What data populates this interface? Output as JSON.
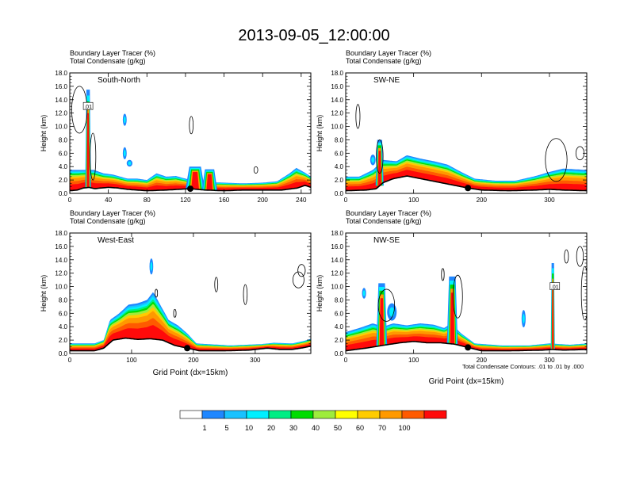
{
  "title": "2013-09-05_12:00:00",
  "panel_header": {
    "line1": "Boundary Layer Tracer   (%)",
    "line2": "Total Condensate   (g/kg)"
  },
  "y_axis_label": "Height (km)",
  "x_axis_label": "Grid Point (dx=15km)",
  "contour_note": "Total Condensate Contours: .01 to .01 by .000",
  "colorbar": {
    "colors": [
      "#ffffff",
      "#1f87ff",
      "#19c2ff",
      "#00f0ff",
      "#00ee84",
      "#00dd00",
      "#9eec3c",
      "#ffff00",
      "#ffcc00",
      "#ff9900",
      "#ff5a00",
      "#ff0a0a"
    ],
    "labels": [
      "1",
      "5",
      "10",
      "20",
      "30",
      "40",
      "50",
      "60",
      "70",
      "100"
    ]
  },
  "chart_data": [
    {
      "type": "heatmap",
      "name": "South-North",
      "title": "South-North",
      "xlim": [
        0,
        250
      ],
      "xticks": [
        0,
        40,
        80,
        120,
        160,
        200,
        240
      ],
      "ylim": [
        0,
        18
      ],
      "yticks": [
        "0.0",
        "2.0",
        "4.0",
        "6.0",
        "8.0",
        "10.0",
        "12.0",
        "14.0",
        "16.0",
        "18.0"
      ],
      "contour_label": ".01",
      "contour_label_pos": [
        19,
        13
      ],
      "marker_x": 125,
      "terrain": [
        [
          0,
          0.4
        ],
        [
          8,
          0.5
        ],
        [
          14,
          0.8
        ],
        [
          20,
          0.9
        ],
        [
          26,
          0.7
        ],
        [
          32,
          0.8
        ],
        [
          40,
          0.9
        ],
        [
          50,
          0.8
        ],
        [
          60,
          0.6
        ],
        [
          80,
          0.4
        ],
        [
          100,
          0.5
        ],
        [
          125,
          0.7
        ],
        [
          140,
          0.5
        ],
        [
          160,
          0.4
        ],
        [
          180,
          0.5
        ],
        [
          200,
          0.5
        ],
        [
          220,
          0.5
        ],
        [
          236,
          0.8
        ],
        [
          244,
          1.2
        ],
        [
          250,
          0.9
        ]
      ],
      "layer": [
        [
          0,
          3.5
        ],
        [
          15,
          3.5
        ],
        [
          25,
          3.5
        ],
        [
          35,
          3.0
        ],
        [
          45,
          2.8
        ],
        [
          60,
          2.2
        ],
        [
          70,
          2.2
        ],
        [
          80,
          2.0
        ],
        [
          90,
          3.0
        ],
        [
          100,
          2.5
        ],
        [
          110,
          2.6
        ],
        [
          125,
          2.0
        ],
        [
          140,
          1.7
        ],
        [
          160,
          1.6
        ],
        [
          180,
          1.5
        ],
        [
          200,
          1.6
        ],
        [
          215,
          1.8
        ],
        [
          228,
          3.0
        ],
        [
          235,
          3.8
        ],
        [
          245,
          3.0
        ],
        [
          250,
          2.5
        ]
      ],
      "plumes": [
        {
          "x": 19,
          "w": 3,
          "h": 15.5
        },
        {
          "x": 130,
          "w": 10,
          "h": 4.0
        },
        {
          "x": 145,
          "w": 8,
          "h": 3.6
        }
      ],
      "blobs": [
        {
          "x": 57,
          "y": 11.0,
          "rx": 2,
          "ry": 0.9
        },
        {
          "x": 57,
          "y": 6.0,
          "rx": 2,
          "ry": 0.9
        },
        {
          "x": 62,
          "y": 4.5,
          "rx": 3,
          "ry": 0.5
        }
      ],
      "contours": [
        {
          "x": 10,
          "y": 12.5,
          "rx": 8,
          "ry": 3.5
        },
        {
          "x": 126,
          "y": 10.2,
          "rx": 2,
          "ry": 1.3
        },
        {
          "x": 193,
          "y": 3.5,
          "rx": 2,
          "ry": 0.5
        },
        {
          "x": 24,
          "y": 5.5,
          "rx": 3,
          "ry": 3.5
        }
      ]
    },
    {
      "type": "heatmap",
      "name": "SW-NE",
      "title": "SW-NE",
      "xlim": [
        0,
        355
      ],
      "xticks": [
        0,
        100,
        200,
        300
      ],
      "ylim": [
        0,
        18
      ],
      "yticks": [
        "0.0",
        "2.0",
        "4.0",
        "6.0",
        "8.0",
        "10.0",
        "12.0",
        "14.0",
        "16.0",
        "18.0"
      ],
      "contour_label": "",
      "contour_label_pos": [
        0,
        0
      ],
      "marker_x": 180,
      "terrain": [
        [
          0,
          0.4
        ],
        [
          30,
          0.5
        ],
        [
          45,
          0.7
        ],
        [
          55,
          1.6
        ],
        [
          70,
          2.2
        ],
        [
          90,
          2.6
        ],
        [
          110,
          2.2
        ],
        [
          130,
          1.8
        ],
        [
          150,
          1.4
        ],
        [
          170,
          1.0
        ],
        [
          180,
          0.8
        ],
        [
          200,
          0.5
        ],
        [
          240,
          0.4
        ],
        [
          280,
          0.5
        ],
        [
          300,
          0.6
        ],
        [
          320,
          0.5
        ],
        [
          355,
          0.4
        ]
      ],
      "layer": [
        [
          0,
          2.5
        ],
        [
          20,
          2.5
        ],
        [
          40,
          3.5
        ],
        [
          55,
          5.0
        ],
        [
          75,
          4.8
        ],
        [
          90,
          5.7
        ],
        [
          110,
          5.2
        ],
        [
          130,
          4.8
        ],
        [
          150,
          4.3
        ],
        [
          170,
          3.2
        ],
        [
          190,
          2.2
        ],
        [
          220,
          1.9
        ],
        [
          250,
          1.9
        ],
        [
          280,
          2.6
        ],
        [
          300,
          3.2
        ],
        [
          320,
          3.7
        ],
        [
          355,
          3.5
        ]
      ],
      "plumes": [
        {
          "x": 50,
          "w": 6,
          "h": 8.0
        }
      ],
      "blobs": [
        {
          "x": 40,
          "y": 5.0,
          "rx": 4,
          "ry": 0.8
        }
      ],
      "contours": [
        {
          "x": 18,
          "y": 11.5,
          "rx": 3,
          "ry": 1.8
        },
        {
          "x": 310,
          "y": 5.0,
          "rx": 16,
          "ry": 3.2
        },
        {
          "x": 345,
          "y": 6.0,
          "rx": 6,
          "ry": 1.0
        },
        {
          "x": 50,
          "y": 5.5,
          "rx": 5,
          "ry": 2.5
        }
      ]
    },
    {
      "type": "heatmap",
      "name": "West-East",
      "title": "West-East",
      "xlim": [
        0,
        390
      ],
      "xticks": [
        0,
        100,
        200,
        300
      ],
      "ylim": [
        0,
        18
      ],
      "yticks": [
        "0.0",
        "2.0",
        "4.0",
        "6.0",
        "8.0",
        "10.0",
        "12.0",
        "14.0",
        "16.0",
        "18.0"
      ],
      "contour_label": "",
      "contour_label_pos": [
        0,
        0
      ],
      "marker_x": 190,
      "terrain": [
        [
          0,
          0.4
        ],
        [
          40,
          0.4
        ],
        [
          55,
          0.8
        ],
        [
          70,
          2.0
        ],
        [
          90,
          2.3
        ],
        [
          110,
          2.1
        ],
        [
          130,
          2.2
        ],
        [
          150,
          2.0
        ],
        [
          170,
          1.2
        ],
        [
          190,
          0.8
        ],
        [
          210,
          0.4
        ],
        [
          250,
          0.4
        ],
        [
          290,
          0.5
        ],
        [
          320,
          0.8
        ],
        [
          340,
          0.6
        ],
        [
          360,
          0.6
        ],
        [
          380,
          0.9
        ],
        [
          390,
          1.1
        ]
      ],
      "layer": [
        [
          0,
          1.5
        ],
        [
          40,
          1.5
        ],
        [
          55,
          2.0
        ],
        [
          65,
          5.0
        ],
        [
          80,
          6.0
        ],
        [
          95,
          7.3
        ],
        [
          110,
          7.5
        ],
        [
          125,
          8.0
        ],
        [
          135,
          9.2
        ],
        [
          145,
          7.5
        ],
        [
          160,
          5.0
        ],
        [
          175,
          4.2
        ],
        [
          190,
          3.0
        ],
        [
          205,
          1.5
        ],
        [
          260,
          1.2
        ],
        [
          310,
          1.4
        ],
        [
          330,
          1.6
        ],
        [
          360,
          1.5
        ],
        [
          380,
          1.9
        ],
        [
          390,
          2.2
        ]
      ],
      "plumes": [],
      "blobs": [
        {
          "x": 132,
          "y": 13.0,
          "rx": 3,
          "ry": 1.2
        }
      ],
      "contours": [
        {
          "x": 237,
          "y": 10.3,
          "rx": 2.5,
          "ry": 1.1
        },
        {
          "x": 284,
          "y": 8.8,
          "rx": 3,
          "ry": 1.5
        },
        {
          "x": 370,
          "y": 11.0,
          "rx": 9,
          "ry": 1.2
        },
        {
          "x": 375,
          "y": 12.4,
          "rx": 6,
          "ry": 0.9
        },
        {
          "x": 140,
          "y": 9.0,
          "rx": 2,
          "ry": 0.6
        },
        {
          "x": 170,
          "y": 6.0,
          "rx": 2,
          "ry": 0.6
        }
      ]
    },
    {
      "type": "heatmap",
      "name": "NW-SE",
      "title": "NW-SE",
      "xlim": [
        0,
        355
      ],
      "xticks": [
        0,
        100,
        200,
        300
      ],
      "ylim": [
        0,
        18
      ],
      "yticks": [
        "0.0",
        "2.0",
        "4.0",
        "6.0",
        "8.0",
        "10.0",
        "12.0",
        "14.0",
        "16.0",
        "18.0"
      ],
      "contour_label": ".01",
      "contour_label_pos": [
        308,
        10.0
      ],
      "marker_x": 180,
      "terrain": [
        [
          0,
          0.4
        ],
        [
          30,
          0.8
        ],
        [
          60,
          1.3
        ],
        [
          80,
          1.6
        ],
        [
          100,
          1.8
        ],
        [
          120,
          1.6
        ],
        [
          140,
          1.6
        ],
        [
          160,
          1.4
        ],
        [
          180,
          0.9
        ],
        [
          200,
          0.4
        ],
        [
          240,
          0.4
        ],
        [
          290,
          0.5
        ],
        [
          305,
          0.6
        ],
        [
          320,
          0.5
        ],
        [
          355,
          0.6
        ]
      ],
      "layer": [
        [
          0,
          3.2
        ],
        [
          20,
          3.8
        ],
        [
          40,
          4.5
        ],
        [
          55,
          4.0
        ],
        [
          70,
          4.5
        ],
        [
          90,
          4.2
        ],
        [
          110,
          4.5
        ],
        [
          130,
          4.3
        ],
        [
          145,
          3.8
        ],
        [
          155,
          4.5
        ],
        [
          170,
          3.0
        ],
        [
          190,
          1.5
        ],
        [
          230,
          1.2
        ],
        [
          270,
          1.2
        ],
        [
          300,
          1.5
        ],
        [
          330,
          1.3
        ],
        [
          355,
          1.5
        ]
      ],
      "plumes": [
        {
          "x": 53,
          "w": 8,
          "h": 10.5
        },
        {
          "x": 157,
          "w": 8,
          "h": 11.5
        },
        {
          "x": 305,
          "w": 3,
          "h": 13.5
        }
      ],
      "blobs": [
        {
          "x": 68,
          "y": 6.2,
          "rx": 7,
          "ry": 1.3
        },
        {
          "x": 27,
          "y": 9.0,
          "rx": 3,
          "ry": 0.8
        },
        {
          "x": 262,
          "y": 5.2,
          "rx": 3,
          "ry": 1.3
        }
      ],
      "contours": [
        {
          "x": 143,
          "y": 11.8,
          "rx": 2,
          "ry": 0.9
        },
        {
          "x": 165,
          "y": 8.5,
          "rx": 7,
          "ry": 3.2
        },
        {
          "x": 60,
          "y": 7.2,
          "rx": 12,
          "ry": 2.4
        },
        {
          "x": 325,
          "y": 14.5,
          "rx": 3,
          "ry": 1.0
        },
        {
          "x": 352,
          "y": 9.0,
          "rx": 5,
          "ry": 4.0
        },
        {
          "x": 345,
          "y": 14.5,
          "rx": 5,
          "ry": 1.5
        }
      ]
    }
  ]
}
